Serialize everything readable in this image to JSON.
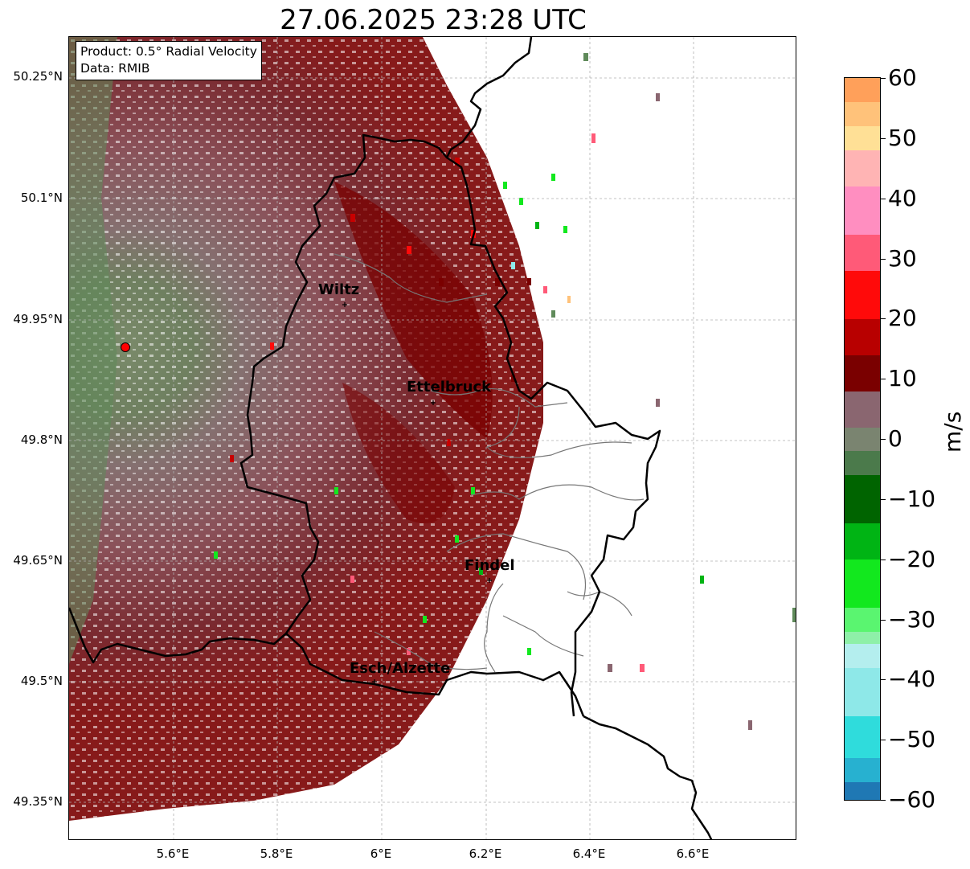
{
  "title": "27.06.2025 23:28 UTC",
  "info": {
    "product": "Product: 0.5° Radial Velocity",
    "data": "Data: RMIB"
  },
  "axes": {
    "lat_ticks": [
      "50.25°N",
      "50.1°N",
      "49.95°N",
      "49.8°N",
      "49.65°N",
      "49.5°N",
      "49.35°N"
    ],
    "lon_ticks": [
      "5.6°E",
      "5.8°E",
      "6°E",
      "6.2°E",
      "6.4°E",
      "6.6°E"
    ],
    "grid": true
  },
  "cities": [
    {
      "name": "Wiltz",
      "lat": 49.965,
      "lon": 5.932
    },
    {
      "name": "Ettelbruck",
      "lat": 49.85,
      "lon": 6.1
    },
    {
      "name": "Findel",
      "lat": 49.626,
      "lon": 6.21
    },
    {
      "name": "Esch/Alzette",
      "lat": 49.496,
      "lon": 5.98
    }
  ],
  "radar_site": {
    "lat": 49.914,
    "lon": 5.505,
    "color": "#ff0000"
  },
  "colorbar": {
    "unit": "m/s",
    "min": -60,
    "max": 60,
    "ticks": [
      "60",
      "50",
      "40",
      "30",
      "20",
      "10",
      "0",
      "−10",
      "−20",
      "−30",
      "−40",
      "−50",
      "−60"
    ],
    "stops": [
      {
        "from": -60,
        "to": -57,
        "color": "#1f78b4"
      },
      {
        "from": -57,
        "to": -53,
        "color": "#27b1d0"
      },
      {
        "from": -53,
        "to": -46,
        "color": "#2fdcdc"
      },
      {
        "from": -46,
        "to": -38,
        "color": "#8ee8e8"
      },
      {
        "from": -38,
        "to": -34,
        "color": "#b4eeee"
      },
      {
        "from": -34,
        "to": -32,
        "color": "#8ef0a8"
      },
      {
        "from": -32,
        "to": -28,
        "color": "#5af570"
      },
      {
        "from": -28,
        "to": -20,
        "color": "#12e81e"
      },
      {
        "from": -20,
        "to": -14,
        "color": "#00b414"
      },
      {
        "from": -14,
        "to": -6,
        "color": "#006400"
      },
      {
        "from": -6,
        "to": -2,
        "color": "#4b7a4b"
      },
      {
        "from": -2,
        "to": 2,
        "color": "#7a8470"
      },
      {
        "from": 2,
        "to": 8,
        "color": "#8a6670"
      },
      {
        "from": 8,
        "to": 14,
        "color": "#7a0000"
      },
      {
        "from": 14,
        "to": 20,
        "color": "#b80000"
      },
      {
        "from": 20,
        "to": 28,
        "color": "#ff0a0a"
      },
      {
        "from": 28,
        "to": 34,
        "color": "#ff5a78"
      },
      {
        "from": 34,
        "to": 42,
        "color": "#ff8ec0"
      },
      {
        "from": 42,
        "to": 48,
        "color": "#ffb4b4"
      },
      {
        "from": 48,
        "to": 52,
        "color": "#ffe096"
      },
      {
        "from": 52,
        "to": 56,
        "color": "#ffc27a"
      },
      {
        "from": 56,
        "to": 60,
        "color": "#ffa05a"
      }
    ]
  },
  "colors": {
    "receding": "#7a0000",
    "approaching": "#00c814",
    "background_echo": "#857070",
    "border": "#000000",
    "admin_lines": "#777777"
  }
}
